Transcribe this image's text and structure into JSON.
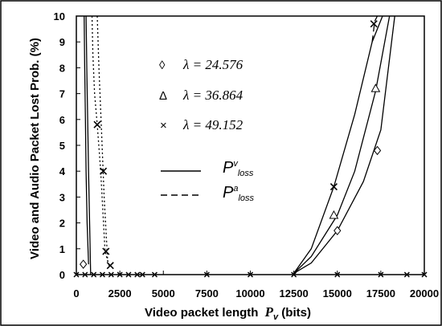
{
  "chart_data": {
    "type": "line",
    "xlabel": "Video packet length",
    "xlabel_var": "P",
    "xlabel_var_sub": "v",
    "xlabel_unit": " (bits)",
    "ylabel": "Video and Audio Packet Lost Prob. (%)",
    "xlim": [
      0,
      20000
    ],
    "ylim": [
      0,
      10
    ],
    "xticks": [
      0,
      2500,
      5000,
      7500,
      10000,
      12500,
      15000,
      17500,
      20000
    ],
    "yticks": [
      0,
      1,
      2,
      3,
      4,
      5,
      6,
      7,
      8,
      9,
      10
    ],
    "legend_markers": [
      {
        "symbol": "◊",
        "label": "λ = 24.576"
      },
      {
        "symbol": "Δ",
        "label": "λ = 36.864"
      },
      {
        "symbol": "×",
        "label": "λ = 49.152"
      }
    ],
    "legend_lines": [
      {
        "style": "solid",
        "base": "P",
        "sup": "v",
        "sub": "loss"
      },
      {
        "style": "dashed",
        "base": "P",
        "sup": "a",
        "sub": "loss"
      }
    ],
    "series": [
      {
        "lambda": 24.576,
        "kind": "video",
        "style": "solid",
        "marker": "diamond",
        "x": [
          12500,
          13500,
          15000,
          16500,
          17500,
          18300
        ],
        "y": [
          0.05,
          0.45,
          1.7,
          3.6,
          5.6,
          10.0
        ],
        "marker_points": [
          [
            15000,
            1.7
          ],
          [
            17300,
            4.8
          ]
        ]
      },
      {
        "lambda": 36.864,
        "kind": "video",
        "style": "solid",
        "marker": "triangle",
        "x": [
          12500,
          13500,
          15000,
          16000,
          17200,
          18000
        ],
        "y": [
          0.05,
          0.7,
          2.3,
          4.0,
          7.1,
          10.0
        ],
        "marker_points": [
          [
            14800,
            2.3
          ],
          [
            17200,
            7.2
          ]
        ]
      },
      {
        "lambda": 49.152,
        "kind": "video",
        "style": "solid",
        "marker": "cross",
        "x": [
          12500,
          13500,
          14800,
          16000,
          17000,
          17600
        ],
        "y": [
          0.05,
          1.0,
          3.4,
          6.2,
          9.0,
          10.0
        ],
        "marker_points": [
          [
            14800,
            3.4
          ],
          [
            17100,
            9.7
          ]
        ]
      },
      {
        "lambda": 49.152,
        "kind": "audio",
        "style": "dashed",
        "marker": "cross",
        "x": [
          17000,
          17150,
          17300
        ],
        "y": [
          9.0,
          9.8,
          10.0
        ],
        "marker_points": []
      },
      {
        "lambda": 24.576,
        "kind": "video",
        "style": "solid",
        "marker": "diamond",
        "x": [
          450,
          480,
          520,
          560,
          620,
          700
        ],
        "y": [
          10.0,
          8.0,
          6.0,
          4.0,
          2.0,
          0.4
        ],
        "marker_points": [
          [
            400,
            0.4
          ]
        ]
      },
      {
        "lambda": 36.864,
        "kind": "video",
        "style": "solid",
        "marker": "triangle",
        "x": [
          560,
          600,
          650,
          700,
          760,
          820
        ],
        "y": [
          10.0,
          8.0,
          6.0,
          4.0,
          2.0,
          0.0
        ],
        "marker_points": []
      },
      {
        "lambda": 49.152,
        "kind": "audio",
        "style": "dotted",
        "marker": "cross",
        "x": [
          900,
          950,
          1050,
          1200,
          1400,
          1650,
          1900
        ],
        "y": [
          10.0,
          8.5,
          7.0,
          5.8,
          4.0,
          0.9,
          0.3
        ],
        "marker_points": [
          [
            1200,
            5.8
          ],
          [
            1550,
            4.0
          ],
          [
            1700,
            0.9
          ],
          [
            1950,
            0.35
          ]
        ]
      },
      {
        "lambda": 49.152,
        "kind": "audio",
        "style": "dotted",
        "marker": "none",
        "x": [
          1200,
          1300,
          1450,
          1600,
          1800
        ],
        "y": [
          10.0,
          8.0,
          5.5,
          3.0,
          0.5
        ],
        "marker_points": []
      }
    ],
    "baseline_markers_x": [
      0,
      500,
      1000,
      1500,
      2000,
      2500,
      3000,
      3500,
      3800,
      4500,
      7500,
      10000,
      12500,
      15000,
      17500,
      19000,
      20000
    ]
  }
}
